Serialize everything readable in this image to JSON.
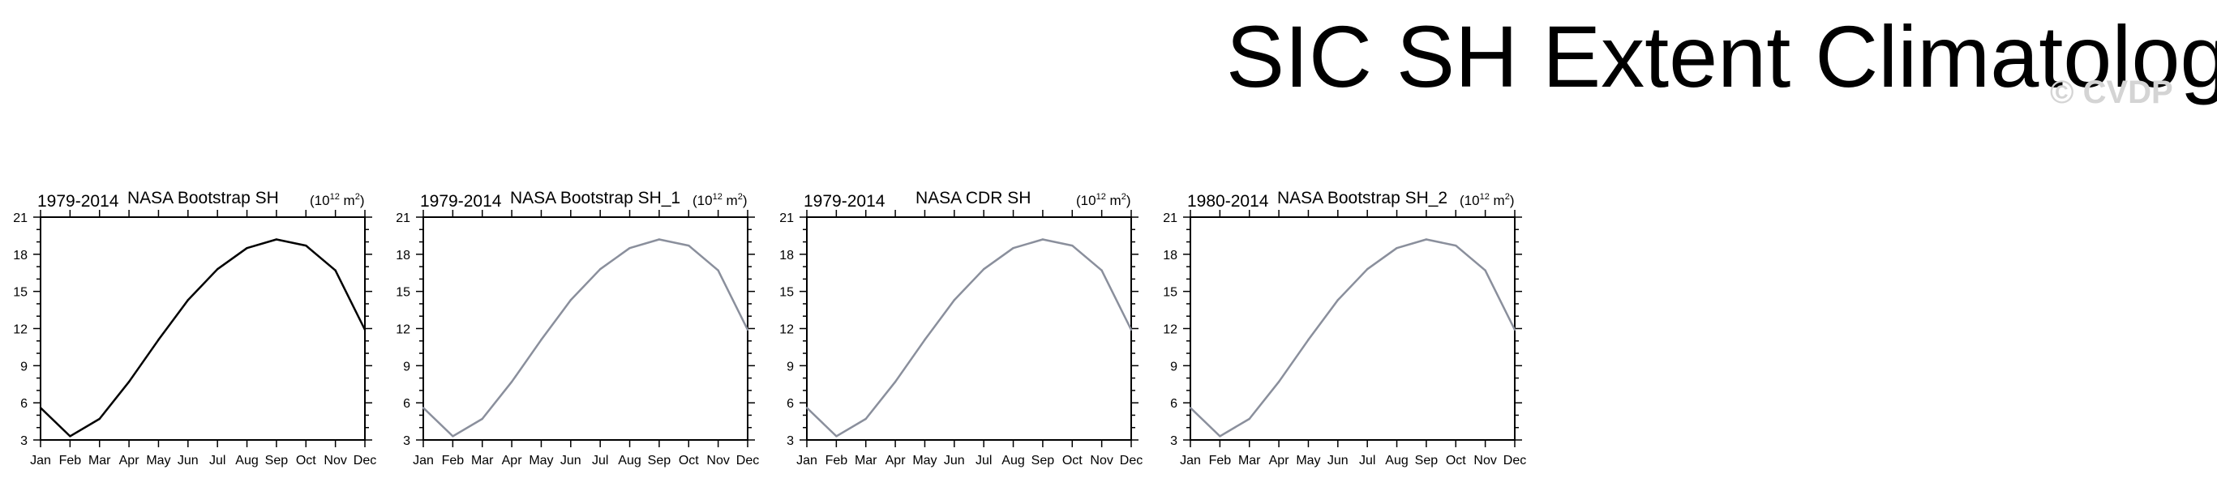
{
  "figure": {
    "title": "SIC SH Extent Climatology",
    "watermark": "© CVDP"
  },
  "chart_data": [
    {
      "type": "line",
      "left_label": "1979-2014",
      "title": "NASA Bootstrap SH",
      "units_base": "(10",
      "units_exp": "12",
      "units_mid": " m",
      "units_exp2": "2",
      "units_end": ")",
      "categories": [
        "Jan",
        "Feb",
        "Mar",
        "Apr",
        "May",
        "Jun",
        "Jul",
        "Aug",
        "Sep",
        "Oct",
        "Nov",
        "Dec"
      ],
      "values": [
        5.6,
        3.3,
        4.7,
        7.7,
        11.1,
        14.3,
        16.8,
        18.5,
        19.2,
        18.7,
        16.7,
        11.9
      ],
      "ylim": [
        3,
        21
      ],
      "yticks": [
        3,
        6,
        9,
        12,
        15,
        18,
        21
      ],
      "line_color": "#000000"
    },
    {
      "type": "line",
      "left_label": "1979-2014",
      "title": "NASA Bootstrap SH_1",
      "units_base": "(10",
      "units_exp": "12",
      "units_mid": " m",
      "units_exp2": "2",
      "units_end": ")",
      "categories": [
        "Jan",
        "Feb",
        "Mar",
        "Apr",
        "May",
        "Jun",
        "Jul",
        "Aug",
        "Sep",
        "Oct",
        "Nov",
        "Dec"
      ],
      "values": [
        5.6,
        3.3,
        4.7,
        7.7,
        11.1,
        14.3,
        16.8,
        18.5,
        19.2,
        18.7,
        16.7,
        11.9
      ],
      "ylim": [
        3,
        21
      ],
      "yticks": [
        3,
        6,
        9,
        12,
        15,
        18,
        21
      ],
      "line_color": "#8a8f9c"
    },
    {
      "type": "line",
      "left_label": "1979-2014",
      "title": "NASA CDR SH",
      "units_base": "(10",
      "units_exp": "12",
      "units_mid": " m",
      "units_exp2": "2",
      "units_end": ")",
      "categories": [
        "Jan",
        "Feb",
        "Mar",
        "Apr",
        "May",
        "Jun",
        "Jul",
        "Aug",
        "Sep",
        "Oct",
        "Nov",
        "Dec"
      ],
      "values": [
        5.6,
        3.3,
        4.7,
        7.7,
        11.1,
        14.3,
        16.8,
        18.5,
        19.2,
        18.7,
        16.7,
        11.9
      ],
      "ylim": [
        3,
        21
      ],
      "yticks": [
        3,
        6,
        9,
        12,
        15,
        18,
        21
      ],
      "line_color": "#8a8f9c"
    },
    {
      "type": "line",
      "left_label": "1980-2014",
      "title": "NASA Bootstrap SH_2",
      "units_base": "(10",
      "units_exp": "12",
      "units_mid": " m",
      "units_exp2": "2",
      "units_end": ")",
      "categories": [
        "Jan",
        "Feb",
        "Mar",
        "Apr",
        "May",
        "Jun",
        "Jul",
        "Aug",
        "Sep",
        "Oct",
        "Nov",
        "Dec"
      ],
      "values": [
        5.6,
        3.3,
        4.7,
        7.7,
        11.1,
        14.3,
        16.8,
        18.5,
        19.2,
        18.7,
        16.7,
        11.9
      ],
      "ylim": [
        3,
        21
      ],
      "yticks": [
        3,
        6,
        9,
        12,
        15,
        18,
        21
      ],
      "line_color": "#8a8f9c"
    }
  ]
}
